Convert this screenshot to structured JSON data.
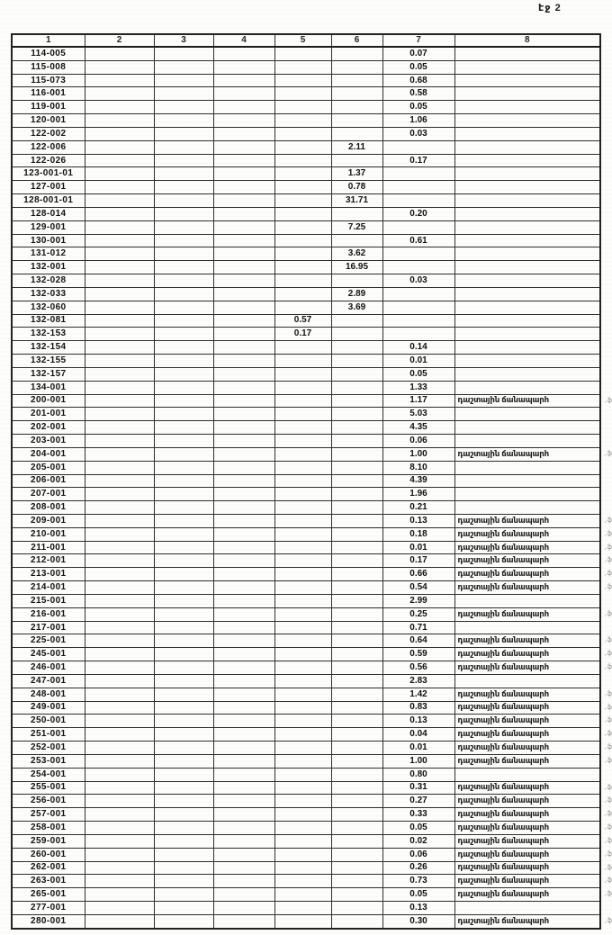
{
  "page": {
    "label": "էջ 2"
  },
  "table": {
    "headers": [
      "1",
      "2",
      "3",
      "4",
      "5",
      "6",
      "7",
      "8"
    ],
    "note_text": "դաշտային ճանապարհ",
    "margin_mark": ",ֆ",
    "rows": [
      {
        "id": "114-005",
        "c5": "",
        "c6": "",
        "c7": "0.07",
        "note": false
      },
      {
        "id": "115-008",
        "c5": "",
        "c6": "",
        "c7": "0.05",
        "note": false
      },
      {
        "id": "115-073",
        "c5": "",
        "c6": "",
        "c7": "0.68",
        "note": false
      },
      {
        "id": "116-001",
        "c5": "",
        "c6": "",
        "c7": "0.58",
        "note": false
      },
      {
        "id": "119-001",
        "c5": "",
        "c6": "",
        "c7": "0.05",
        "note": false
      },
      {
        "id": "120-001",
        "c5": "",
        "c6": "",
        "c7": "1.06",
        "note": false
      },
      {
        "id": "122-002",
        "c5": "",
        "c6": "",
        "c7": "0.03",
        "note": false
      },
      {
        "id": "122-006",
        "c5": "",
        "c6": "2.11",
        "c7": "",
        "note": false
      },
      {
        "id": "122-026",
        "c5": "",
        "c6": "",
        "c7": "0.17",
        "note": false
      },
      {
        "id": "123-001-01",
        "c5": "",
        "c6": "1.37",
        "c7": "",
        "note": false
      },
      {
        "id": "127-001",
        "c5": "",
        "c6": "0.78",
        "c7": "",
        "note": false
      },
      {
        "id": "128-001-01",
        "c5": "",
        "c6": "31.71",
        "c7": "",
        "note": false
      },
      {
        "id": "128-014",
        "c5": "",
        "c6": "",
        "c7": "0.20",
        "note": false
      },
      {
        "id": "129-001",
        "c5": "",
        "c6": "7.25",
        "c7": "",
        "note": false
      },
      {
        "id": "130-001",
        "c5": "",
        "c6": "",
        "c7": "0.61",
        "note": false
      },
      {
        "id": "131-012",
        "c5": "",
        "c6": "3.62",
        "c7": "",
        "note": false
      },
      {
        "id": "132-001",
        "c5": "",
        "c6": "16.95",
        "c7": "",
        "note": false
      },
      {
        "id": "132-028",
        "c5": "",
        "c6": "",
        "c7": "0.03",
        "note": false
      },
      {
        "id": "132-033",
        "c5": "",
        "c6": "2.89",
        "c7": "",
        "note": false
      },
      {
        "id": "132-060",
        "c5": "",
        "c6": "3.69",
        "c7": "",
        "note": false
      },
      {
        "id": "132-081",
        "c5": "0.57",
        "c6": "",
        "c7": "",
        "note": false
      },
      {
        "id": "132-153",
        "c5": "0.17",
        "c6": "",
        "c7": "",
        "note": false
      },
      {
        "id": "132-154",
        "c5": "",
        "c6": "",
        "c7": "0.14",
        "note": false
      },
      {
        "id": "132-155",
        "c5": "",
        "c6": "",
        "c7": "0.01",
        "note": false
      },
      {
        "id": "132-157",
        "c5": "",
        "c6": "",
        "c7": "0.05",
        "note": false
      },
      {
        "id": "134-001",
        "c5": "",
        "c6": "",
        "c7": "1.33",
        "note": false
      },
      {
        "id": "200-001",
        "c5": "",
        "c6": "",
        "c7": "1.17",
        "note": true
      },
      {
        "id": "201-001",
        "c5": "",
        "c6": "",
        "c7": "5.03",
        "note": false
      },
      {
        "id": "202-001",
        "c5": "",
        "c6": "",
        "c7": "4.35",
        "note": false
      },
      {
        "id": "203-001",
        "c5": "",
        "c6": "",
        "c7": "0.06",
        "note": false
      },
      {
        "id": "204-001",
        "c5": "",
        "c6": "",
        "c7": "1.00",
        "note": true
      },
      {
        "id": "205-001",
        "c5": "",
        "c6": "",
        "c7": "8.10",
        "note": false
      },
      {
        "id": "206-001",
        "c5": "",
        "c6": "",
        "c7": "4.39",
        "note": false
      },
      {
        "id": "207-001",
        "c5": "",
        "c6": "",
        "c7": "1.96",
        "note": false
      },
      {
        "id": "208-001",
        "c5": "",
        "c6": "",
        "c7": "0.21",
        "note": false
      },
      {
        "id": "209-001",
        "c5": "",
        "c6": "",
        "c7": "0.13",
        "note": true
      },
      {
        "id": "210-001",
        "c5": "",
        "c6": "",
        "c7": "0.18",
        "note": true
      },
      {
        "id": "211-001",
        "c5": "",
        "c6": "",
        "c7": "0.01",
        "note": true
      },
      {
        "id": "212-001",
        "c5": "",
        "c6": "",
        "c7": "0.17",
        "note": true
      },
      {
        "id": "213-001",
        "c5": "",
        "c6": "",
        "c7": "0.66",
        "note": true
      },
      {
        "id": "214-001",
        "c5": "",
        "c6": "",
        "c7": "0.54",
        "note": true
      },
      {
        "id": "215-001",
        "c5": "",
        "c6": "",
        "c7": "2.99",
        "note": false
      },
      {
        "id": "216-001",
        "c5": "",
        "c6": "",
        "c7": "0.25",
        "note": true
      },
      {
        "id": "217-001",
        "c5": "",
        "c6": "",
        "c7": "0.71",
        "note": false
      },
      {
        "id": "225-001",
        "c5": "",
        "c6": "",
        "c7": "0.64",
        "note": true
      },
      {
        "id": "245-001",
        "c5": "",
        "c6": "",
        "c7": "0.59",
        "note": true
      },
      {
        "id": "246-001",
        "c5": "",
        "c6": "",
        "c7": "0.56",
        "note": true
      },
      {
        "id": "247-001",
        "c5": "",
        "c6": "",
        "c7": "2.83",
        "note": false
      },
      {
        "id": "248-001",
        "c5": "",
        "c6": "",
        "c7": "1.42",
        "note": true
      },
      {
        "id": "249-001",
        "c5": "",
        "c6": "",
        "c7": "0.83",
        "note": true
      },
      {
        "id": "250-001",
        "c5": "",
        "c6": "",
        "c7": "0.13",
        "note": true
      },
      {
        "id": "251-001",
        "c5": "",
        "c6": "",
        "c7": "0.04",
        "note": true
      },
      {
        "id": "252-001",
        "c5": "",
        "c6": "",
        "c7": "0.01",
        "note": true
      },
      {
        "id": "253-001",
        "c5": "",
        "c6": "",
        "c7": "1.00",
        "note": true
      },
      {
        "id": "254-001",
        "c5": "",
        "c6": "",
        "c7": "0.80",
        "note": false
      },
      {
        "id": "255-001",
        "c5": "",
        "c6": "",
        "c7": "0.31",
        "note": true
      },
      {
        "id": "256-001",
        "c5": "",
        "c6": "",
        "c7": "0.27",
        "note": true
      },
      {
        "id": "257-001",
        "c5": "",
        "c6": "",
        "c7": "0.33",
        "note": true
      },
      {
        "id": "258-001",
        "c5": "",
        "c6": "",
        "c7": "0.05",
        "note": true
      },
      {
        "id": "259-001",
        "c5": "",
        "c6": "",
        "c7": "0.02",
        "note": true
      },
      {
        "id": "260-001",
        "c5": "",
        "c6": "",
        "c7": "0.06",
        "note": true
      },
      {
        "id": "262-001",
        "c5": "",
        "c6": "",
        "c7": "0.26",
        "note": true
      },
      {
        "id": "263-001",
        "c5": "",
        "c6": "",
        "c7": "0.73",
        "note": true
      },
      {
        "id": "265-001",
        "c5": "",
        "c6": "",
        "c7": "0.05",
        "note": true
      },
      {
        "id": "277-001",
        "c5": "",
        "c6": "",
        "c7": "0.13",
        "note": false
      },
      {
        "id": "280-001",
        "c5": "",
        "c6": "",
        "c7": "0.30",
        "note": true
      }
    ]
  }
}
